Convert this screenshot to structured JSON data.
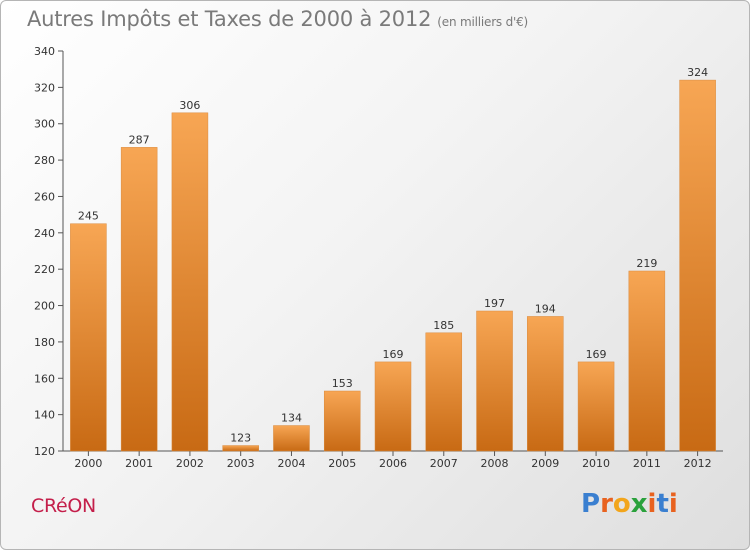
{
  "header": {
    "title": "Autres Impôts et Taxes de 2000 à 2012",
    "unit": "(en milliers d'€)"
  },
  "footer": {
    "commune": "CRéON",
    "logo_letters": [
      "P",
      "r",
      "o",
      "x",
      "i",
      "t",
      "i"
    ]
  },
  "colors": {
    "bar_top": "#f7a654",
    "bar_bottom": "#c86a14",
    "commune": "#c41e4a",
    "logo": [
      "#3a7fd0",
      "#e8621f",
      "#f2a51b",
      "#2aa13c",
      "#e8621f",
      "#3a7fd0",
      "#e8621f"
    ]
  },
  "chart_data": {
    "type": "bar",
    "title": "Autres Impôts et Taxes de 2000 à 2012",
    "subtitle": "(en milliers d'€)",
    "categories": [
      "2000",
      "2001",
      "2002",
      "2003",
      "2004",
      "2005",
      "2006",
      "2007",
      "2008",
      "2009",
      "2010",
      "2011",
      "2012"
    ],
    "values": [
      245,
      287,
      306,
      123,
      134,
      153,
      169,
      185,
      197,
      194,
      169,
      219,
      324
    ],
    "ylim": [
      120,
      340
    ],
    "yticks": [
      120,
      140,
      160,
      180,
      200,
      220,
      240,
      260,
      280,
      300,
      320,
      340
    ],
    "grid": false,
    "legend": "none"
  }
}
